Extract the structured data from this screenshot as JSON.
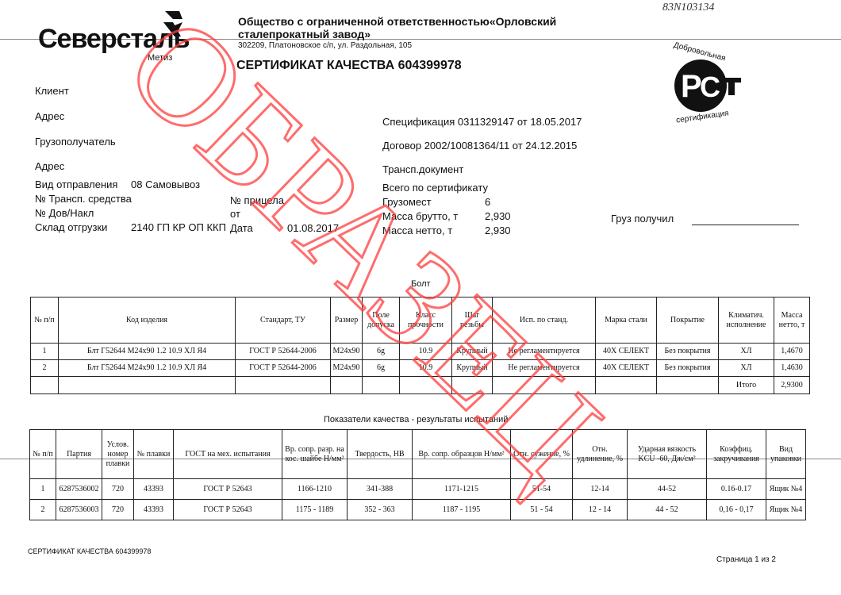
{
  "logo": {
    "brand": "Северсталь",
    "sub": "Метиз"
  },
  "handwritten": "83N103134",
  "company": {
    "line1": "Общество с ограниченной ответственностью«Орловский",
    "line2": "сталепрокатный завод»",
    "address": "302209, Платоновское с/п, ул. Раздольная, 105"
  },
  "title": "СЕРТИФИКАТ КАЧЕСТВА 604399978",
  "rst_logo": {
    "top": "Добровольная",
    "bottom": "сертификация",
    "mark": "РСТ"
  },
  "left_fields": {
    "client": "Клиент",
    "address": "Адрес",
    "consignee": "Грузополучатель",
    "address2": "Адрес",
    "shipment_label": "Вид отправления",
    "shipment_value": "08 Самовывоз",
    "vehicle_label": "№ Трансп. средства",
    "trailer_label": "№ прицела",
    "invoice_label": "№ Дов/Накл",
    "from_label": "от",
    "warehouse_label": "Склад отгрузки",
    "warehouse_value": "2140 ГП КР ОП ККП",
    "date_label": "Дата",
    "date_value": "01.08.2017"
  },
  "right_fields": {
    "spec": "Спецификация  0311329147 от 18.05.2017",
    "contract": "Договор  2002/10081364/11 от 24.12.2015",
    "transport_doc": "Трансп.документ",
    "total_label": "Всего по сертификату",
    "places_label": "Грузомест",
    "places_value": "6",
    "gross_label": "Масса брутто, т",
    "gross_value": "2,930",
    "net_label": "Масса нетто, т",
    "net_value": "2,930",
    "received_label": "Груз получил"
  },
  "product_title": "Болт",
  "product_table": {
    "headers": [
      "№ п/п",
      "Код изделия",
      "Стандарт, ТУ",
      "Размер",
      "Поле допуска",
      "Класс прочности",
      "Шаг резьбы",
      "Исп. по станд.",
      "Марка стали",
      "Покрытие",
      "Климатич. исполнение",
      "Масса нетто, т"
    ],
    "rows": [
      [
        "1",
        "Блт Г52644 М24х90 1.2 10.9 ХЛ Я4",
        "ГОСТ Р 52644-2006",
        "М24х90",
        "6g",
        "10.9",
        "Крупный",
        "Не регламентируется",
        "40Х СЕЛЕКТ",
        "Без покрытия",
        "ХЛ",
        "1,4670"
      ],
      [
        "2",
        "Блт Г52644 М24х90 1.2 10.9 ХЛ Я4",
        "ГОСТ Р 52644-2006",
        "М24х90",
        "6g",
        "10.9",
        "Крупный",
        "Не регламентируется",
        "40Х СЕЛЕКТ",
        "Без покрытия",
        "ХЛ",
        "1,4630"
      ]
    ],
    "total_label": "Итого",
    "total_value": "2,9300"
  },
  "quality_title": "Показатели качества - результаты испытаний",
  "quality_table": {
    "headers": [
      "№ п/п",
      "Партия",
      "Услов. номер плавки",
      "№ плавки",
      "ГОСТ на мех. испытания",
      "Вр. сопр. разр. на кос. шайбе Н/мм²",
      "Твердость, НВ",
      "Вр. сопр. образцов Н/мм²",
      "Отн. сужение, %",
      "Отн. удлинение, %",
      "Ударная вязкость KCU -60, Дж/см²",
      "Коэффиц. закручивания",
      "Вид упаковки"
    ],
    "rows": [
      [
        "1",
        "6287536002",
        "720",
        "43393",
        "ГОСТ Р 52643",
        "1166-1210",
        "341-388",
        "1171-1215",
        "51-54",
        "12-14",
        "44-52",
        "0.16-0.17",
        "Ящик №4"
      ],
      [
        "2",
        "6287536003",
        "720",
        "43393",
        "ГОСТ Р 52643",
        "1175 - 1189",
        "352 - 363",
        "1187 - 1195",
        "51 - 54",
        "12 - 14",
        "44 - 52",
        "0,16 - 0,17",
        "Ящик №4"
      ]
    ]
  },
  "footer": {
    "left": "СЕРТИФИКАТ КАЧЕСТВА 604399978",
    "right": "Страница 1 из 2"
  },
  "watermark": {
    "text": "ОБРАЗЕЦ",
    "color": "#ff3b3b"
  }
}
